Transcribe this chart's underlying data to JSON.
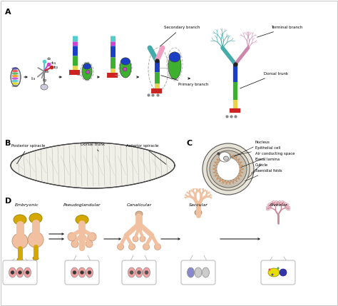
{
  "bg_color": "#ffffff",
  "panel_A_labels": {
    "secondary_branch": "Secondary branch",
    "terminal_branch": "Terminal branch",
    "dorsal_trunk": "Dorsal trunk",
    "primary_branch": "Primary branch"
  },
  "panel_B_labels": {
    "posterior_spiracle": "Posterior spiracle",
    "dorsal_trunk": "Dorsal trunk",
    "anterior_spiracle": "Anterior spiracle"
  },
  "panel_C_labels": {
    "nucleus": "Nucleus",
    "epithelial_cell": "Epithelial cell",
    "air_conducting_space": "Air conducting space",
    "basal_lamina": "Basal lamina",
    "cuticle": "Cuticle",
    "taenidial_folds": "Taenidial folds"
  },
  "panel_D_labels": [
    "Embryonic",
    "Pseudoglandular",
    "Canalicular",
    "Saccular",
    "Alveolar"
  ],
  "colors": {
    "blue": "#1a3fc4",
    "green": "#3db030",
    "yellow": "#e8d44d",
    "red": "#cc2222",
    "cyan": "#55cccc",
    "pink": "#f0a0c0",
    "teal": "#44aaaa",
    "magenta": "#cc44cc",
    "tan": "#c8956a",
    "skin": "#f0c0a0",
    "skin_dark": "#e0a888",
    "gold": "#d4a800",
    "body_pink": "#f5bba0"
  }
}
